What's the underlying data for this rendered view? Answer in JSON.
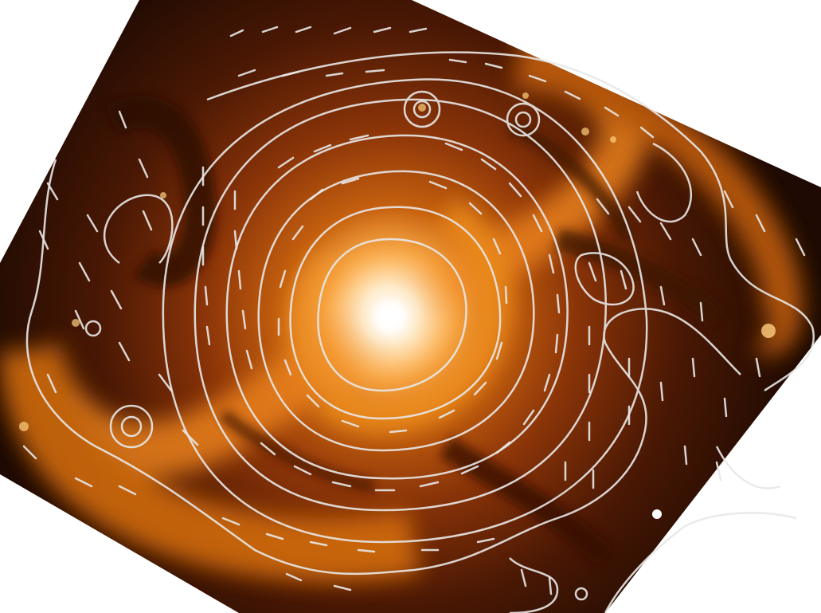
{
  "image": {
    "subject": "spiral galaxy",
    "overlays": [
      "contour-lines",
      "polarization-vectors"
    ],
    "colors": {
      "background": "#ffffff",
      "core": "#fffaf0",
      "inner": "#ffc070",
      "arm": "#e07a14",
      "dust": "#3a1404",
      "edge": "#1a0802",
      "overlay": "#e8e8e8"
    }
  }
}
